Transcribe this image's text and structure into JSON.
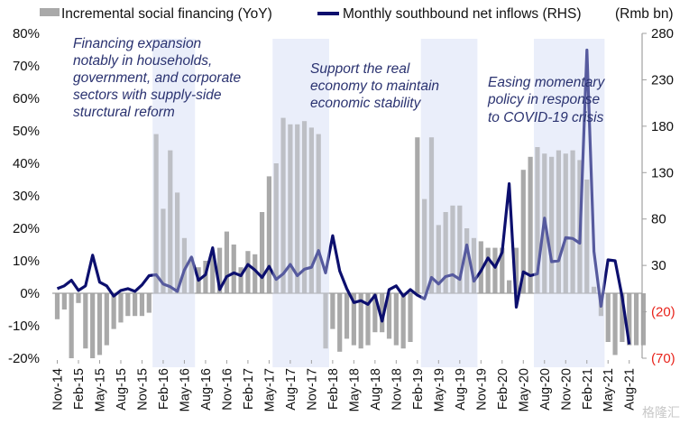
{
  "chart_data": {
    "type": "bar+line",
    "title": "",
    "legend": {
      "placement": "top",
      "entries": [
        {
          "label": "Incremental social financing (YoY)",
          "kind": "bar",
          "color": "#a9a9a9"
        },
        {
          "label": "Monthly southbound net inflows (RHS)",
          "kind": "line",
          "color": "#0c0f6e"
        }
      ],
      "unit_label": "(Rmb bn)"
    },
    "left_axis": {
      "ticks": [
        "80%",
        "70%",
        "60%",
        "50%",
        "40%",
        "30%",
        "20%",
        "10%",
        "0%",
        "-10%",
        "-20%"
      ],
      "range": [
        -20,
        80
      ],
      "unit": "%"
    },
    "right_axis": {
      "ticks": [
        "280",
        "230",
        "180",
        "130",
        "80",
        "30",
        "(20)",
        "(70)"
      ],
      "range": [
        -70,
        280
      ],
      "unit": "Rmb bn",
      "negative_color": "#e8231b"
    },
    "x_ticks": [
      "Nov-14",
      "Feb-15",
      "May-15",
      "Aug-15",
      "Nov-15",
      "Feb-16",
      "May-16",
      "Aug-16",
      "Nov-16",
      "Feb-17",
      "May-17",
      "Aug-17",
      "Nov-17",
      "Feb-18",
      "May-18",
      "Aug-18",
      "Nov-18",
      "Feb-19",
      "May-19",
      "Aug-19",
      "Nov-19",
      "Feb-20",
      "May-20",
      "Aug-20",
      "Nov-20",
      "Feb-21",
      "May-21",
      "Aug-21"
    ],
    "start_month": "Nov-14",
    "months": 82,
    "series": [
      {
        "name": "Incremental social financing (YoY)",
        "axis": "left",
        "values": [
          -8,
          -5,
          -20,
          -3,
          -17,
          -20,
          -19,
          -16,
          -11,
          -9,
          -7,
          -7,
          -7,
          -6,
          49,
          26,
          44,
          31,
          17,
          11,
          8,
          10,
          12,
          14,
          19,
          15,
          8,
          13,
          12,
          25,
          36,
          40,
          54,
          52,
          52,
          53,
          51,
          49,
          -17,
          -11,
          -18,
          -14,
          -16,
          -17,
          -16,
          -12,
          -12,
          -14,
          -16,
          -17,
          -15,
          48,
          29,
          48,
          21,
          25,
          27,
          27,
          20,
          17,
          16,
          14,
          14,
          14,
          4,
          14,
          38,
          42,
          45,
          43,
          42,
          44,
          43,
          44,
          41,
          35,
          2,
          -7,
          -15,
          -19,
          -15,
          -16,
          -16,
          -16
        ]
      },
      {
        "name": "Monthly southbound net inflows (RHS)",
        "axis": "right",
        "values": [
          5,
          8,
          14,
          3,
          8,
          41,
          12,
          8,
          -3,
          3,
          5,
          2,
          9,
          19,
          20,
          10,
          7,
          2,
          25,
          39,
          14,
          20,
          49,
          4,
          18,
          22,
          19,
          31,
          25,
          17,
          29,
          15,
          21,
          31,
          19,
          26,
          28,
          46,
          22,
          62,
          24,
          5,
          -10,
          -8,
          -12,
          -2,
          -30,
          4,
          8,
          -3,
          4,
          -2,
          -6,
          17,
          10,
          18,
          20,
          15,
          52,
          13,
          24,
          38,
          28,
          44,
          118,
          -15,
          23,
          19,
          21,
          81,
          34,
          35,
          60,
          59,
          54,
          262,
          45,
          -14,
          36,
          35,
          -4,
          -55
        ]
      }
    ],
    "shaded_periods": [
      {
        "start": "Jan-16",
        "end": "Jun-16"
      },
      {
        "start": "Jun-17",
        "end": "Jan-18"
      },
      {
        "start": "Mar-19",
        "end": "Oct-19"
      },
      {
        "start": "Jul-20",
        "end": "Apr-21"
      }
    ],
    "annotations": [
      {
        "lines": [
          "Financing expansion",
          "notably in households,",
          "government, and corporate",
          "sectors with supply-side",
          "sturctural reform"
        ]
      },
      {
        "lines": [
          "Support the real",
          "economy to maintain",
          "economic stability"
        ]
      },
      {
        "lines": [
          "Easing momentary",
          "policy in response",
          "to COVID-19 crisis"
        ]
      }
    ]
  },
  "watermark": "格隆汇"
}
